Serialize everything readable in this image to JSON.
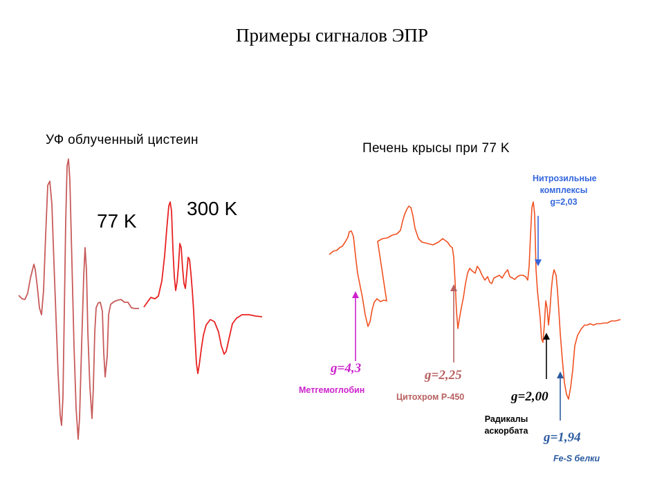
{
  "title": "Примеры сигналов ЭПР",
  "left_panel": {
    "heading": "УФ облученный цистеин",
    "temp_low": "77 K",
    "temp_high": "300 K"
  },
  "right_panel": {
    "heading": "Печень крысы при 77 K",
    "nitrosyl": {
      "line1": "Нитрозильные",
      "line2": "комплексы",
      "line3": "g=2,03"
    },
    "g43": {
      "value": "g=4,3",
      "label": "Метгемоглобин"
    },
    "g225": {
      "value": "g=2,25",
      "label": "Цитохром P-450"
    },
    "g200": {
      "value": "g=2,00",
      "label_line1": "Радикалы",
      "label_line2": "аскорбата"
    },
    "g194": {
      "value": "g=1,94",
      "label": "Fe-S белки"
    }
  },
  "colors": {
    "spectrum_77k": "#c85a5a",
    "spectrum_300k": "#e82020",
    "spectrum_liver": "#f05020",
    "metgemoglobin": "#cc22cc",
    "cytochrome": "#b86060",
    "radicals": "#000000",
    "fes": "#2a5aa0",
    "nitrosyl": "#3366dd"
  }
}
